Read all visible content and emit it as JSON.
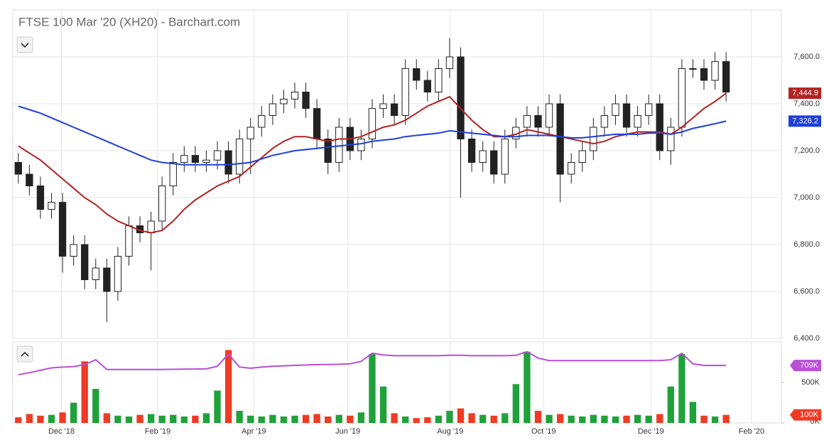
{
  "chart_data": {
    "type": "candlestick",
    "title": "FTSE 100 Mar '20 (XH20) - Barchart.com",
    "categories": [
      null,
      null,
      null,
      null,
      null,
      null,
      null,
      null,
      null,
      null,
      null,
      null,
      null,
      null,
      null,
      null,
      null,
      null,
      null,
      null,
      null,
      null,
      null,
      null,
      null,
      null,
      null,
      null,
      null,
      null,
      null,
      null,
      null,
      null,
      null,
      null,
      null,
      null,
      null,
      null,
      null,
      null,
      null,
      null,
      null,
      null,
      null,
      null,
      null,
      null,
      null,
      null,
      null,
      null,
      null,
      null,
      null,
      null,
      null,
      null,
      null,
      null,
      null,
      null,
      null
    ],
    "candle_color": "#222222",
    "open": [
      7150,
      7100,
      7050,
      6950,
      6980,
      6750,
      6800,
      6650,
      6700,
      6600,
      6750,
      6880,
      6850,
      6900,
      7050,
      7150,
      7180,
      7150,
      7160,
      7200,
      7100,
      7250,
      7300,
      7350,
      7400,
      7420,
      7450,
      7380,
      7250,
      7150,
      7300,
      7200,
      7250,
      7380,
      7400,
      7350,
      7550,
      7500,
      7450,
      7550,
      7600,
      7250,
      7150,
      7200,
      7100,
      7250,
      7300,
      7350,
      7300,
      7400,
      7100,
      7150,
      7200,
      7300,
      7350,
      7400,
      7300,
      7350,
      7400,
      7200,
      7300,
      7550,
      7550,
      7500,
      7580
    ],
    "high": [
      7190,
      7140,
      7090,
      7020,
      7020,
      6840,
      6840,
      6740,
      6740,
      6790,
      6920,
      6920,
      6940,
      7090,
      7190,
      7220,
      7220,
      7200,
      7240,
      7240,
      7290,
      7340,
      7390,
      7440,
      7460,
      7490,
      7490,
      7420,
      7290,
      7340,
      7340,
      7290,
      7420,
      7440,
      7440,
      7590,
      7590,
      7540,
      7590,
      7680,
      7640,
      7290,
      7240,
      7240,
      7290,
      7340,
      7390,
      7390,
      7440,
      7440,
      7190,
      7240,
      7340,
      7390,
      7440,
      7440,
      7390,
      7440,
      7440,
      7340,
      7590,
      7590,
      7590,
      7620,
      7620
    ],
    "low": [
      7060,
      7010,
      6910,
      6910,
      6680,
      6710,
      6610,
      6610,
      6470,
      6560,
      6710,
      6810,
      6690,
      6860,
      7010,
      7110,
      7110,
      7110,
      7120,
      7060,
      7060,
      7100,
      7260,
      7310,
      7360,
      7380,
      7340,
      7210,
      7100,
      7110,
      7160,
      7160,
      7210,
      7340,
      7310,
      7310,
      7460,
      7410,
      7410,
      7510,
      7000,
      7110,
      7110,
      7060,
      7060,
      7210,
      7260,
      7260,
      7260,
      6980,
      7060,
      7110,
      7160,
      7260,
      7310,
      7260,
      7260,
      7310,
      7160,
      7140,
      7260,
      7510,
      7460,
      7460,
      7410
    ],
    "close": [
      7100,
      7050,
      6950,
      6980,
      6750,
      6800,
      6650,
      6700,
      6600,
      6750,
      6880,
      6850,
      6900,
      7050,
      7150,
      7180,
      7150,
      7160,
      7200,
      7100,
      7250,
      7300,
      7350,
      7400,
      7420,
      7450,
      7380,
      7250,
      7150,
      7300,
      7200,
      7250,
      7380,
      7400,
      7350,
      7550,
      7500,
      7450,
      7550,
      7600,
      7250,
      7150,
      7200,
      7100,
      7250,
      7300,
      7350,
      7300,
      7400,
      7100,
      7150,
      7200,
      7300,
      7350,
      7400,
      7300,
      7350,
      7400,
      7200,
      7300,
      7550,
      7550,
      7500,
      7580,
      7450
    ],
    "series": [
      {
        "color": "#b22222",
        "values": [
          7220,
          7190,
          7160,
          7120,
          7080,
          7040,
          7000,
          6970,
          6930,
          6900,
          6880,
          6860,
          6850,
          6860,
          6900,
          6950,
          6990,
          7020,
          7050,
          7070,
          7090,
          7130,
          7170,
          7210,
          7240,
          7260,
          7260,
          7250,
          7240,
          7250,
          7250,
          7260,
          7280,
          7300,
          7310,
          7330,
          7360,
          7390,
          7410,
          7430,
          7380,
          7330,
          7290,
          7260,
          7260,
          7270,
          7290,
          7280,
          7270,
          7260,
          7250,
          7240,
          7230,
          7240,
          7260,
          7270,
          7280,
          7280,
          7280,
          7270,
          7300,
          7340,
          7380,
          7410,
          7444.9
        ],
        "last_label": {
          "value": 7444.9,
          "label": "7,444.9"
        }
      },
      {
        "color": "#1f3fd8",
        "values": [
          7390,
          7375,
          7360,
          7340,
          7320,
          7300,
          7280,
          7260,
          7240,
          7220,
          7200,
          7180,
          7160,
          7150,
          7145,
          7140,
          7140,
          7140,
          7140,
          7140,
          7145,
          7150,
          7165,
          7180,
          7190,
          7200,
          7205,
          7210,
          7215,
          7220,
          7225,
          7230,
          7240,
          7245,
          7250,
          7260,
          7265,
          7270,
          7275,
          7285,
          7280,
          7275,
          7270,
          7265,
          7260,
          7260,
          7265,
          7265,
          7265,
          7260,
          7255,
          7255,
          7260,
          7265,
          7270,
          7270,
          7270,
          7275,
          7275,
          7270,
          7280,
          7295,
          7305,
          7315,
          7326.2
        ],
        "last_label": {
          "value": 7326.2,
          "label": "7,326.2"
        }
      }
    ],
    "xlim": [
      -0.5,
      69
    ],
    "xticks": [
      {
        "value": 3.9,
        "label": "Dec '18"
      },
      {
        "value": 12.6,
        "label": "Feb '19"
      },
      {
        "value": 21.3,
        "label": "Apr '19"
      },
      {
        "value": 29.8,
        "label": "Jun '19"
      },
      {
        "value": 39.05,
        "label": "Aug '19"
      },
      {
        "value": 47.5,
        "label": "Oct '19"
      },
      {
        "value": 57.2,
        "label": "Dec '19"
      },
      {
        "value": 66.3,
        "label": "Feb '20"
      }
    ],
    "ylim": [
      6400,
      7800
    ],
    "yticks": [
      {
        "value": 6400,
        "label": "6,400.0"
      },
      {
        "value": 6600,
        "label": "6,600.0"
      },
      {
        "value": 6800,
        "label": "6,800.0"
      },
      {
        "value": 7000,
        "label": "7,000.0"
      },
      {
        "value": 7200,
        "label": "7,200.0"
      },
      {
        "value": 7400,
        "label": "7,400.0"
      },
      {
        "value": 7600,
        "label": "7,600.0"
      }
    ],
    "grid": true,
    "volume": {
      "up_color": "#1fa23a",
      "down_color": "#ef3b24",
      "values": [
        70000,
        110000,
        90000,
        100000,
        130000,
        250000,
        760000,
        420000,
        120000,
        90000,
        80000,
        100000,
        110000,
        90000,
        100000,
        80000,
        90000,
        120000,
        400000,
        900000,
        150000,
        90000,
        80000,
        100000,
        80000,
        90000,
        100000,
        110000,
        80000,
        100000,
        90000,
        130000,
        850000,
        450000,
        120000,
        80000,
        60000,
        70000,
        90000,
        150000,
        180000,
        120000,
        100000,
        90000,
        120000,
        480000,
        880000,
        150000,
        100000,
        110000,
        90000,
        80000,
        100000,
        90000,
        80000,
        90000,
        100000,
        90000,
        110000,
        450000,
        850000,
        260000,
        90000,
        80000,
        100000
      ],
      "ylim": [
        0,
        1000000
      ],
      "yticks": [
        {
          "value": 0,
          "label": "0K"
        },
        {
          "value": 500000,
          "label": "500K"
        }
      ],
      "last_label": {
        "value": 100000,
        "label": "100K"
      },
      "ma": {
        "color": "#b84fd6",
        "values": [
          596000,
          620000,
          650000,
          680000,
          690000,
          695000,
          720000,
          780000,
          660000,
          660000,
          660000,
          660000,
          660000,
          660000,
          662000,
          664000,
          666000,
          668000,
          700000,
          850000,
          690000,
          675000,
          690000,
          700000,
          705000,
          710000,
          715000,
          720000,
          722000,
          725000,
          730000,
          760000,
          860000,
          840000,
          830000,
          830000,
          830000,
          830000,
          830000,
          835000,
          835000,
          830000,
          830000,
          830000,
          830000,
          835000,
          880000,
          800000,
          770000,
          770000,
          770000,
          770000,
          770000,
          770000,
          770000,
          770000,
          770000,
          770000,
          770000,
          780000,
          860000,
          730000,
          709000,
          709000,
          709000
        ],
        "last_label": {
          "value": 709000,
          "label": "709K"
        }
      }
    }
  }
}
